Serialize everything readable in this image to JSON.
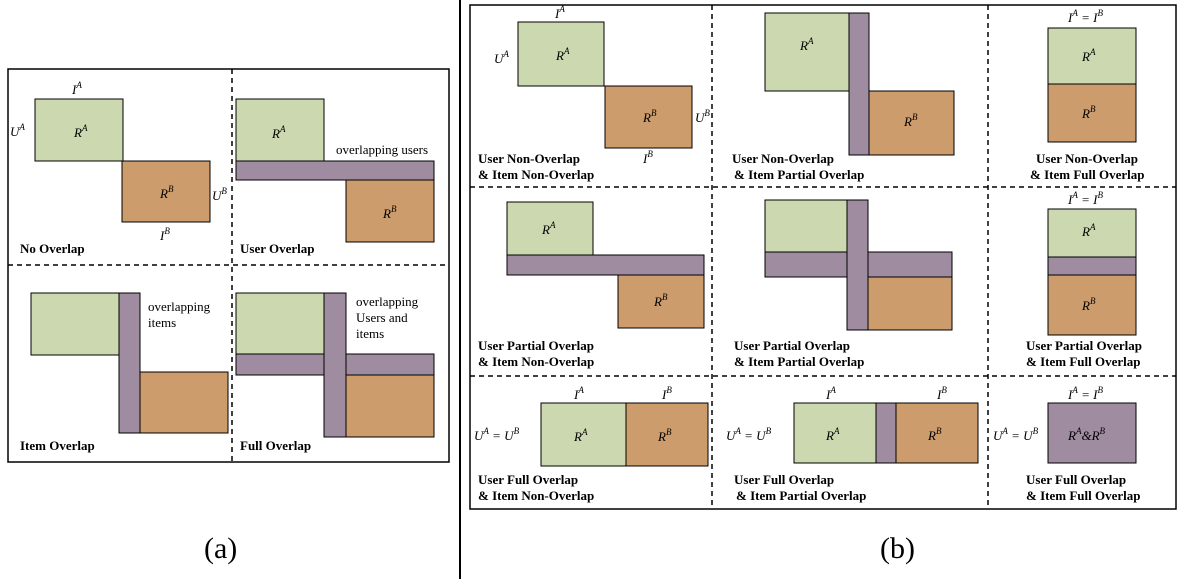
{
  "colors": {
    "ra_fill": "#ccd8b0",
    "rb_fill": "#cd9c6c",
    "overlap_fill": "#9f8ca0",
    "stroke": "#000000"
  },
  "symbols": {
    "ra": "R",
    "rb": "R",
    "ia": "I",
    "ib": "I",
    "ua": "U",
    "ub": "U",
    "sup_a": "A",
    "sup_b": "B",
    "equals": "=",
    "combined": "R^A&R^B"
  },
  "panel_a": {
    "label": "(a)",
    "captions": {
      "no_overlap": "No Overlap",
      "user_overlap": "User Overlap",
      "item_overlap": "Item Overlap",
      "full_overlap": "Full Overlap"
    },
    "notes": {
      "overlapping_users": "overlapping users",
      "overlapping_items_1": "overlapping",
      "overlapping_items_2": "items",
      "overlapping_ui_1": "overlapping",
      "overlapping_ui_2": "Users and",
      "overlapping_ui_3": "items"
    }
  },
  "panel_b": {
    "label": "(b)",
    "captions": {
      "r1c1": [
        "User Non-Overlap",
        "& Item Non-Overlap"
      ],
      "r1c2": [
        "User Non-Overlap",
        "& Item Partial Overlap"
      ],
      "r1c3": [
        "User Non-Overlap",
        "& Item Full Overlap"
      ],
      "r2c1": [
        "User Partial Overlap",
        "& Item Non-Overlap"
      ],
      "r2c2": [
        "User Partial Overlap",
        "& Item Partial Overlap"
      ],
      "r2c3": [
        "User Partial Overlap",
        "& Item Full Overlap"
      ],
      "r3c1": [
        "User Full Overlap",
        "& Item Non-Overlap"
      ],
      "r3c2": [
        "User Full Overlap",
        "& Item Partial Overlap"
      ],
      "r3c3": [
        "User Full Overlap",
        "& Item Full Overlap"
      ]
    }
  }
}
